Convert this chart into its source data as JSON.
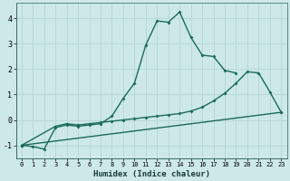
{
  "xlabel": "Humidex (Indice chaleur)",
  "bg_color": "#cde8e8",
  "grid_color": "#b8d8d8",
  "line_color": "#1a6b5a",
  "line1": [
    [
      0,
      -1.0
    ],
    [
      1,
      -1.05
    ],
    [
      2,
      -1.15
    ],
    [
      3,
      -0.3
    ],
    [
      4,
      -0.2
    ],
    [
      5,
      -0.25
    ],
    [
      6,
      -0.2
    ],
    [
      7,
      -0.15
    ],
    [
      8,
      0.15
    ],
    [
      9,
      0.85
    ],
    [
      10,
      1.45
    ],
    [
      11,
      2.95
    ],
    [
      12,
      3.9
    ],
    [
      13,
      3.85
    ],
    [
      14,
      4.25
    ],
    [
      15,
      3.25
    ],
    [
      16,
      2.55
    ],
    [
      17,
      2.5
    ],
    [
      18,
      1.95
    ],
    [
      19,
      1.85
    ]
  ],
  "line2": [
    [
      0,
      -1.0
    ],
    [
      3,
      -0.25
    ],
    [
      4,
      -0.15
    ],
    [
      5,
      -0.2
    ],
    [
      6,
      -0.15
    ],
    [
      7,
      -0.1
    ],
    [
      8,
      -0.05
    ],
    [
      9,
      0.0
    ],
    [
      10,
      0.05
    ],
    [
      11,
      0.1
    ],
    [
      12,
      0.15
    ],
    [
      13,
      0.2
    ],
    [
      14,
      0.25
    ],
    [
      15,
      0.35
    ],
    [
      16,
      0.5
    ],
    [
      17,
      0.75
    ],
    [
      18,
      1.05
    ],
    [
      19,
      1.45
    ],
    [
      20,
      1.9
    ],
    [
      21,
      1.85
    ],
    [
      22,
      1.1
    ],
    [
      23,
      0.3
    ]
  ],
  "line3": [
    [
      0,
      -1.0
    ],
    [
      23,
      0.3
    ]
  ],
  "ylim": [
    -1.5,
    4.6
  ],
  "xlim": [
    -0.5,
    23.5
  ],
  "yticks": [
    -1,
    0,
    1,
    2,
    3,
    4
  ],
  "xticks": [
    0,
    1,
    2,
    3,
    4,
    5,
    6,
    7,
    8,
    9,
    10,
    11,
    12,
    13,
    14,
    15,
    16,
    17,
    18,
    19,
    20,
    21,
    22,
    23
  ]
}
